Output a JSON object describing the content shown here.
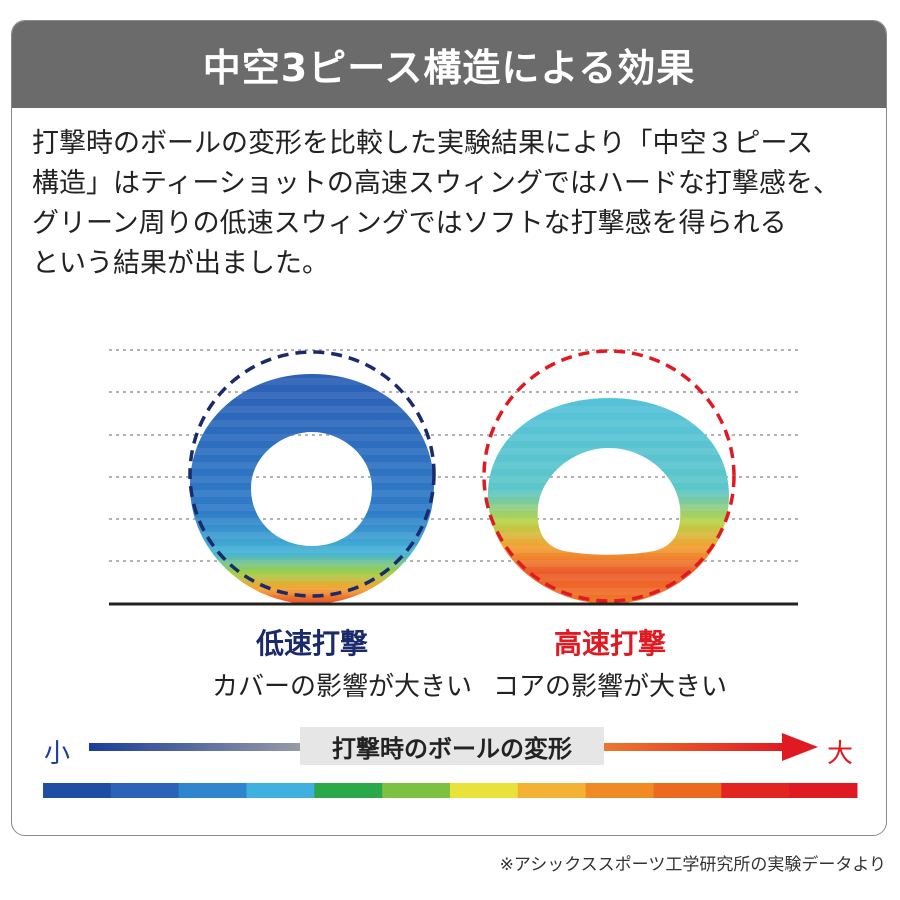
{
  "title": "中空3ピース構造による効果",
  "description_lines": [
    "打撃時のボールの変形を比較した実験結果により「中空３ピース",
    "構造」はティーショットの高速スウィングではハードな打撃感を、",
    "グリーン周りの低速スウィングではソフトな打撃感を得られる",
    "という結果が出ました。"
  ],
  "low_speed": {
    "title": "低速打撃",
    "subtitle": "カバーの影響が大きい",
    "title_color": "#1a2a6b",
    "outline_color": "#1a2a6b"
  },
  "high_speed": {
    "title": "高速打撃",
    "subtitle": "コアの影響が大きい",
    "title_color": "#e01a22",
    "outline_color": "#e01a22"
  },
  "scale": {
    "small_label": "小",
    "large_label": "大",
    "axis_label": "打撃時のボールの変形",
    "colors": [
      "#1f4fa3",
      "#2a63b8",
      "#2f86cf",
      "#3fb0e0",
      "#2aa84a",
      "#7cc142",
      "#e8e23a",
      "#f3b233",
      "#f08a24",
      "#ec6a20",
      "#e2261f",
      "#e01a22"
    ]
  },
  "footnote": "※アシックススポーツ工学研究所の実験データより"
}
